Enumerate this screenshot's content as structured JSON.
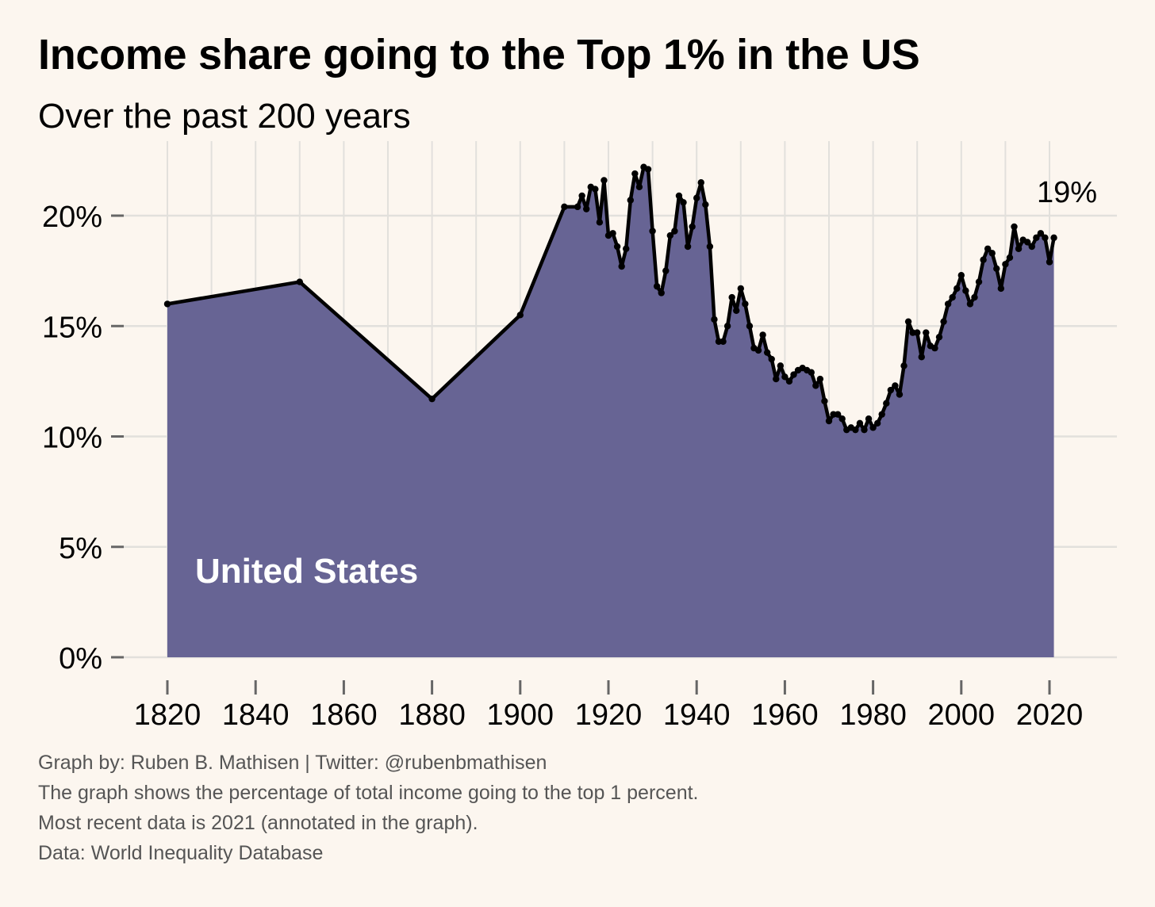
{
  "header": {
    "title": "Income share going to the Top 1% in the US",
    "subtitle": "Over the past 200 years"
  },
  "colors": {
    "background": "#fcf6ef",
    "area_fill": "#676494",
    "line": "#000000",
    "grid": "#e2e0dc",
    "tick": "#666666"
  },
  "chart_data": {
    "type": "area",
    "title": "Income share going to the Top 1% in the US",
    "subtitle": "Over the past 200 years",
    "xlabel": "",
    "ylabel": "",
    "xlim": [
      1816,
      2035
    ],
    "ylim": [
      0,
      23
    ],
    "x_ticks": [
      1820,
      1840,
      1860,
      1880,
      1900,
      1920,
      1940,
      1960,
      1980,
      2000,
      2020
    ],
    "x_tick_labels": [
      "1820",
      "1840",
      "1860",
      "1880",
      "1900",
      "1920",
      "1940",
      "1960",
      "1980",
      "2000",
      "2020"
    ],
    "y_ticks": [
      0,
      5,
      10,
      15,
      20
    ],
    "y_tick_labels": [
      "0%",
      "5%",
      "10%",
      "15%",
      "20%"
    ],
    "grid": true,
    "series": [
      {
        "name": "United States",
        "x": [
          1820,
          1850,
          1880,
          1900,
          1910,
          1913,
          1914,
          1915,
          1916,
          1917,
          1918,
          1919,
          1920,
          1921,
          1922,
          1923,
          1924,
          1925,
          1926,
          1927,
          1928,
          1929,
          1930,
          1931,
          1932,
          1933,
          1934,
          1935,
          1936,
          1937,
          1938,
          1939,
          1940,
          1941,
          1942,
          1943,
          1944,
          1945,
          1946,
          1947,
          1948,
          1949,
          1950,
          1951,
          1952,
          1953,
          1954,
          1955,
          1956,
          1957,
          1958,
          1959,
          1960,
          1961,
          1962,
          1963,
          1964,
          1965,
          1966,
          1967,
          1968,
          1969,
          1970,
          1971,
          1972,
          1973,
          1974,
          1975,
          1976,
          1977,
          1978,
          1979,
          1980,
          1981,
          1982,
          1983,
          1984,
          1985,
          1986,
          1987,
          1988,
          1989,
          1990,
          1991,
          1992,
          1993,
          1994,
          1995,
          1996,
          1997,
          1998,
          1999,
          2000,
          2001,
          2002,
          2003,
          2004,
          2005,
          2006,
          2007,
          2008,
          2009,
          2010,
          2011,
          2012,
          2013,
          2014,
          2015,
          2016,
          2017,
          2018,
          2019,
          2020,
          2021
        ],
        "values": [
          16.0,
          17.0,
          11.7,
          15.5,
          20.4,
          20.4,
          20.9,
          20.3,
          21.3,
          21.2,
          19.7,
          21.6,
          19.1,
          19.2,
          18.6,
          17.7,
          18.5,
          20.7,
          21.9,
          21.3,
          22.2,
          22.1,
          19.3,
          16.8,
          16.5,
          17.5,
          19.1,
          19.3,
          20.9,
          20.6,
          18.6,
          19.5,
          20.8,
          21.5,
          20.5,
          18.6,
          15.3,
          14.3,
          14.3,
          15.0,
          16.3,
          15.7,
          16.7,
          16.0,
          15.0,
          14.0,
          13.9,
          14.6,
          13.8,
          13.5,
          12.6,
          13.2,
          12.7,
          12.5,
          12.8,
          13.0,
          13.1,
          13.0,
          12.9,
          12.3,
          12.6,
          11.6,
          10.7,
          11.0,
          11.0,
          10.8,
          10.3,
          10.4,
          10.3,
          10.6,
          10.3,
          10.8,
          10.4,
          10.6,
          11.0,
          11.5,
          12.1,
          12.3,
          11.9,
          13.2,
          15.2,
          14.7,
          14.7,
          13.6,
          14.7,
          14.1,
          14.0,
          14.5,
          15.2,
          16.0,
          16.3,
          16.7,
          17.3,
          16.6,
          16.0,
          16.3,
          17.0,
          18.0,
          18.5,
          18.3,
          17.6,
          16.7,
          17.8,
          18.1,
          19.5,
          18.5,
          18.9,
          18.8,
          18.6,
          19.0,
          19.2,
          19.0,
          17.9,
          19.0
        ]
      }
    ],
    "area_label": "United States",
    "annotation": {
      "x": 2021,
      "y": 19,
      "text": "19%"
    }
  },
  "captions": {
    "line1": "Graph by: Ruben B. Mathisen | Twitter: @rubenbmathisen",
    "line2": "The graph shows the percentage of total income going to the top 1 percent.",
    "line3": "Most recent data is 2021 (annotated in the graph).",
    "line4": "Data: World Inequality Database"
  }
}
